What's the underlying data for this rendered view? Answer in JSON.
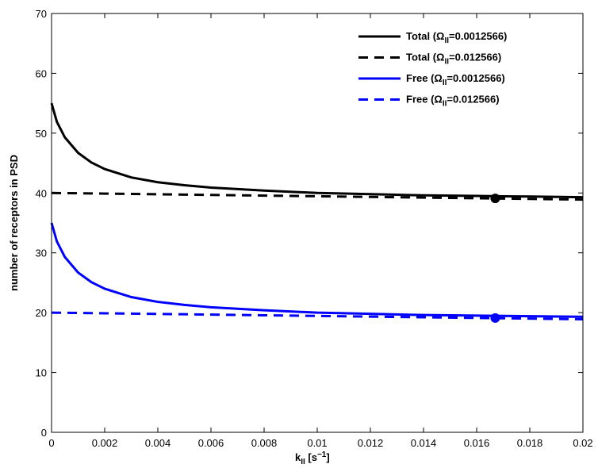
{
  "chart_data": {
    "type": "line",
    "ylabel": "number of receptors in PSD",
    "xlabel": [
      "k",
      "II",
      " [s",
      "−1",
      "]"
    ],
    "x": [
      0,
      0.0002,
      0.0005,
      0.001,
      0.0015,
      0.002,
      0.003,
      0.004,
      0.005,
      0.006,
      0.008,
      0.01,
      0.012,
      0.014,
      0.016,
      0.018,
      0.02
    ],
    "series": [
      {
        "name": [
          "Total (Ω",
          "II",
          "=0.0012566)"
        ],
        "color": "#000000",
        "dash": false,
        "values": [
          55,
          51.9,
          49.3,
          46.7,
          45.1,
          44.0,
          42.6,
          41.8,
          41.3,
          40.9,
          40.4,
          40.0,
          39.8,
          39.6,
          39.5,
          39.4,
          39.3
        ]
      },
      {
        "name": [
          "Total (Ω",
          "II",
          "=0.012566)"
        ],
        "color": "#000000",
        "dash": true,
        "values": [
          40,
          39.99,
          39.97,
          39.95,
          39.92,
          39.89,
          39.84,
          39.78,
          39.73,
          39.67,
          39.56,
          39.45,
          39.34,
          39.23,
          39.12,
          39.01,
          38.9
        ]
      },
      {
        "name": [
          "Free (Ω",
          "II",
          "=0.0012566)"
        ],
        "color": "#0000ff",
        "dash": false,
        "values": [
          35,
          31.9,
          29.3,
          26.7,
          25.1,
          24.0,
          22.6,
          21.8,
          21.3,
          20.9,
          20.4,
          20.0,
          19.8,
          19.6,
          19.5,
          19.4,
          19.3
        ]
      },
      {
        "name": [
          "Free (Ω",
          "II",
          "=0.012566)"
        ],
        "color": "#0000ff",
        "dash": true,
        "values": [
          20,
          19.99,
          19.97,
          19.95,
          19.92,
          19.89,
          19.84,
          19.78,
          19.73,
          19.67,
          19.56,
          19.45,
          19.34,
          19.23,
          19.12,
          19.01,
          18.9
        ]
      }
    ],
    "markers": [
      {
        "x": 0.0167,
        "y": 39.1,
        "color": "#000000"
      },
      {
        "x": 0.0167,
        "y": 19.1,
        "color": "#0000ff"
      }
    ],
    "xlim": [
      0,
      0.02
    ],
    "xticks": [
      0,
      0.002,
      0.004,
      0.006,
      0.008,
      0.01,
      0.012,
      0.014,
      0.016,
      0.018,
      0.02
    ],
    "ylim": [
      0,
      70
    ],
    "yticks": [
      0,
      10,
      20,
      30,
      40,
      50,
      60,
      70
    ],
    "legend": "upper right"
  }
}
